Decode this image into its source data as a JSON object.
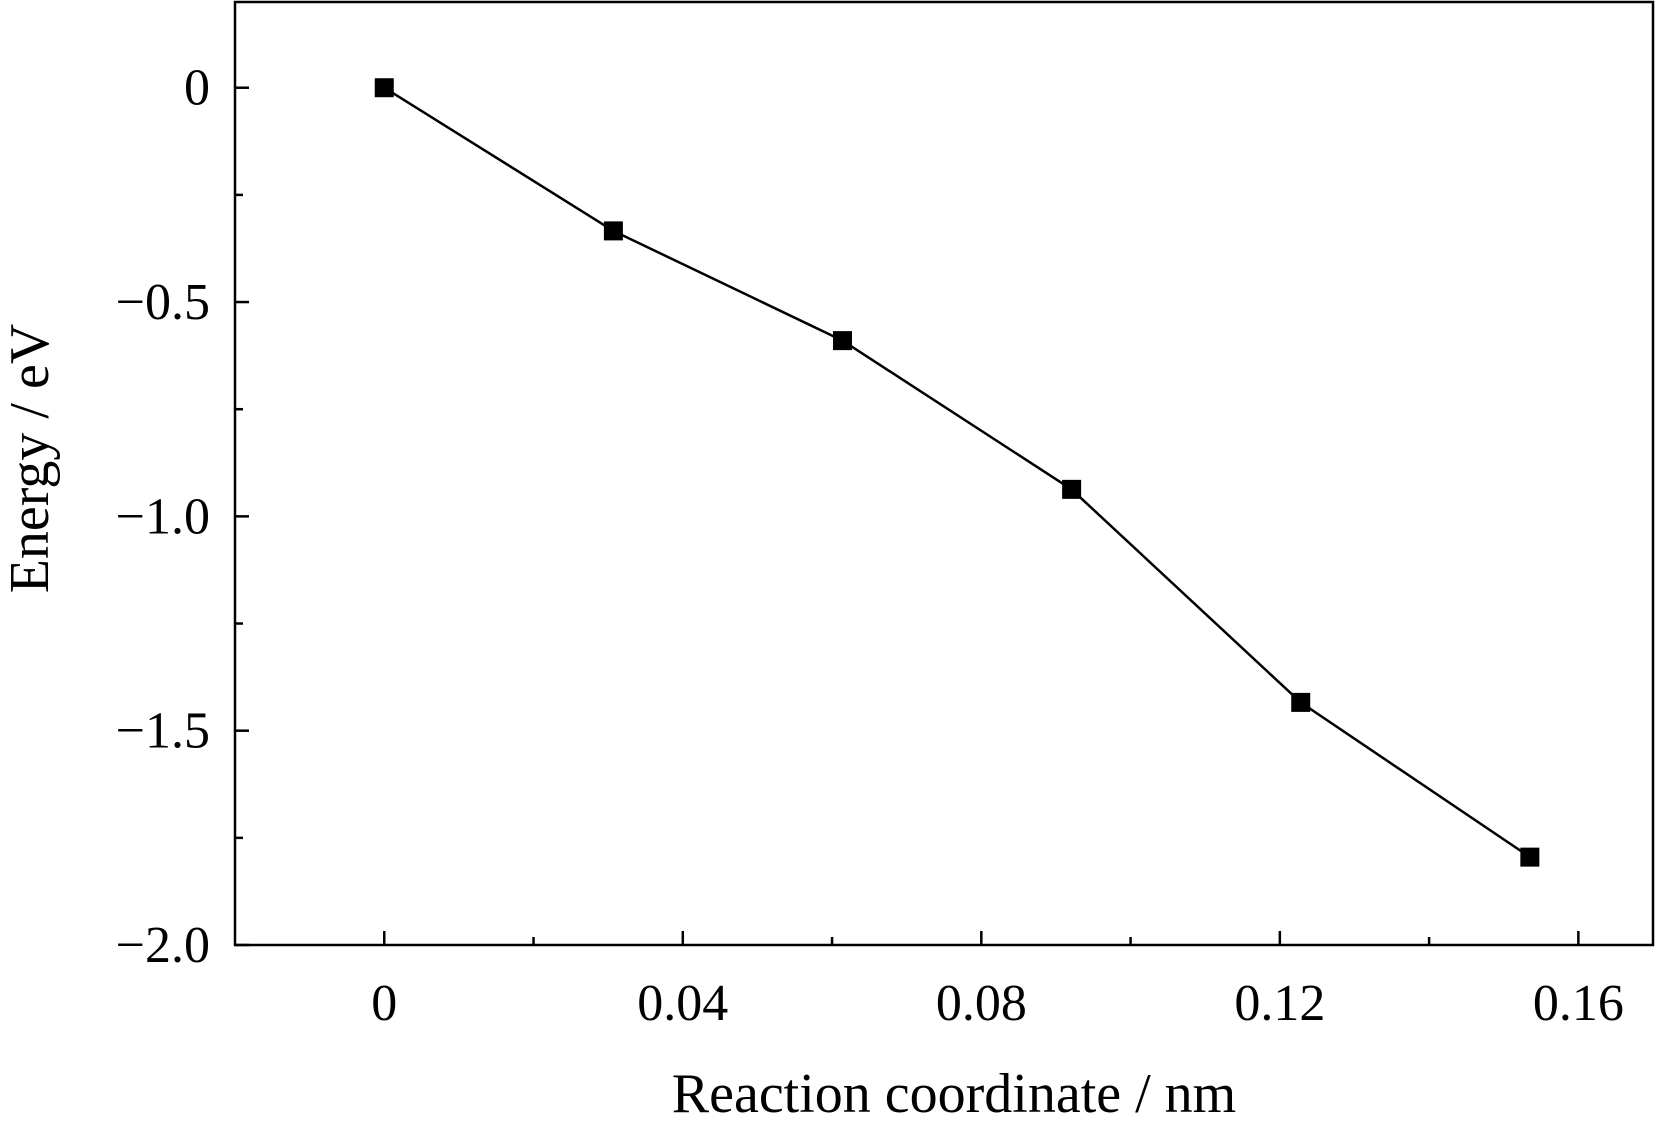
{
  "chart_data": {
    "type": "line",
    "title": "",
    "xlabel": "Reaction coordinate / nm",
    "ylabel": "Energy / eV",
    "xlim": [
      -0.02,
      0.17
    ],
    "ylim": [
      -2.0,
      0.2
    ],
    "x_major_ticks": [
      0,
      0.04,
      0.08,
      0.12,
      0.16
    ],
    "x_minor_ticks": [
      0.02,
      0.06,
      0.1,
      0.14
    ],
    "x_tick_labels": [
      "0",
      "0.04",
      "0.08",
      "0.12",
      "0.16"
    ],
    "y_major_ticks": [
      0,
      -0.5,
      -1.0,
      -1.5,
      -2.0
    ],
    "y_minor_ticks": [
      -0.25,
      -0.75,
      -1.25,
      -1.75
    ],
    "y_tick_labels": [
      "0",
      "−0.5",
      "−1.0",
      "−1.5",
      "−2.0"
    ],
    "grid": false,
    "legend": "none",
    "series": [
      {
        "marker": "filled-square",
        "color": "#000000",
        "x": [
          0,
          0.0307,
          0.0614,
          0.0921,
          0.1228,
          0.1535
        ],
        "y": [
          0,
          -0.334,
          -0.59,
          -0.937,
          -1.434,
          -1.795
        ]
      }
    ]
  }
}
